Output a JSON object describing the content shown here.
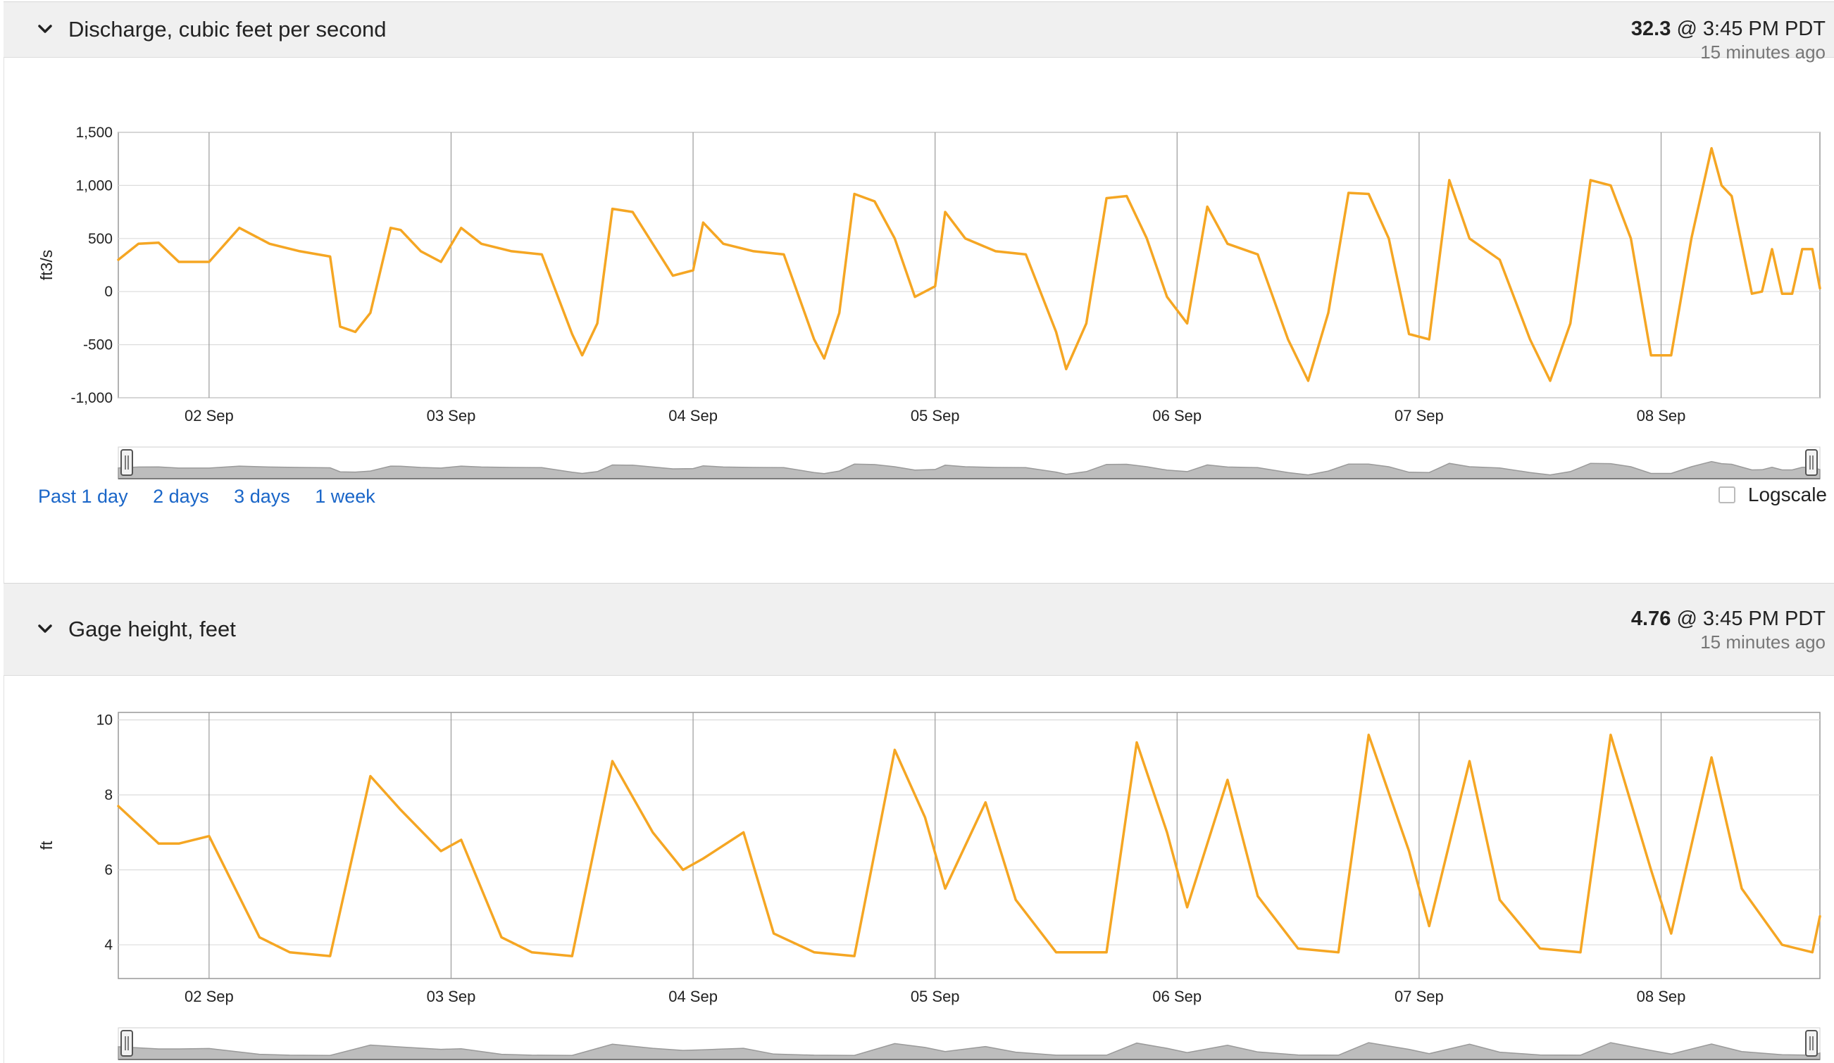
{
  "panels": [
    {
      "title": "Discharge, cubic feet per second",
      "current_value": "32.3",
      "current_time": "@ 3:45 PM PDT",
      "current_ago": "15 minutes ago"
    },
    {
      "title": "Gage height, feet",
      "current_value": "4.76",
      "current_time": "@ 3:45 PM PDT",
      "current_ago": "15 minutes ago"
    }
  ],
  "controls": {
    "range_links": [
      "Past 1 day",
      "2 days",
      "3 days",
      "1 week"
    ],
    "logscale_label": "Logscale"
  },
  "colors": {
    "series": "#f5a623",
    "header_bg": "#f0f0f0",
    "link": "#1a66c8",
    "navigator_fill": "#bdbdbd"
  },
  "chart_data": [
    {
      "type": "line",
      "ylabel": "ft3/s",
      "xlim": [
        "2024-09-01T15:00",
        "2024-09-08T15:45"
      ],
      "ylim": [
        -1000,
        1500
      ],
      "yticks": [
        -1000,
        -500,
        0,
        500,
        1000,
        1500
      ],
      "ytick_labels": [
        "-1,000",
        "-500",
        "0",
        "500",
        "1,000",
        "1,500"
      ],
      "xticks": [
        "2024-09-02T00:00",
        "2024-09-03T00:00",
        "2024-09-04T00:00",
        "2024-09-05T00:00",
        "2024-09-06T00:00",
        "2024-09-07T00:00",
        "2024-09-08T00:00"
      ],
      "xtick_labels": [
        "02 Sep",
        "03 Sep",
        "04 Sep",
        "05 Sep",
        "06 Sep",
        "07 Sep",
        "08 Sep"
      ],
      "grid": true,
      "series": [
        {
          "x": [
            "2024-09-01T15:00",
            "2024-09-01T17:00",
            "2024-09-01T19:00",
            "2024-09-01T21:00",
            "2024-09-02T00:00",
            "2024-09-02T03:00",
            "2024-09-02T06:00",
            "2024-09-02T09:00",
            "2024-09-02T12:00",
            "2024-09-02T13:00",
            "2024-09-02T14:30",
            "2024-09-02T16:00",
            "2024-09-02T18:00",
            "2024-09-02T19:00",
            "2024-09-02T21:00",
            "2024-09-02T23:00",
            "2024-09-03T01:00",
            "2024-09-03T03:00",
            "2024-09-03T06:00",
            "2024-09-03T09:00",
            "2024-09-03T12:00",
            "2024-09-03T13:00",
            "2024-09-03T14:30",
            "2024-09-03T16:00",
            "2024-09-03T18:00",
            "2024-09-03T20:00",
            "2024-09-03T22:00",
            "2024-09-04T00:00",
            "2024-09-04T01:00",
            "2024-09-04T03:00",
            "2024-09-04T06:00",
            "2024-09-04T09:00",
            "2024-09-04T12:00",
            "2024-09-04T13:00",
            "2024-09-04T14:30",
            "2024-09-04T16:00",
            "2024-09-04T18:00",
            "2024-09-04T20:00",
            "2024-09-04T22:00",
            "2024-09-05T00:00",
            "2024-09-05T01:00",
            "2024-09-05T03:00",
            "2024-09-05T06:00",
            "2024-09-05T09:00",
            "2024-09-05T12:00",
            "2024-09-05T13:00",
            "2024-09-05T15:00",
            "2024-09-05T17:00",
            "2024-09-05T19:00",
            "2024-09-05T21:00",
            "2024-09-05T23:00",
            "2024-09-06T01:00",
            "2024-09-06T03:00",
            "2024-09-06T05:00",
            "2024-09-06T08:00",
            "2024-09-06T11:00",
            "2024-09-06T13:00",
            "2024-09-06T15:00",
            "2024-09-06T17:00",
            "2024-09-06T19:00",
            "2024-09-06T21:00",
            "2024-09-06T23:00",
            "2024-09-07T01:00",
            "2024-09-07T03:00",
            "2024-09-07T05:00",
            "2024-09-07T08:00",
            "2024-09-07T11:00",
            "2024-09-07T13:00",
            "2024-09-07T15:00",
            "2024-09-07T17:00",
            "2024-09-07T19:00",
            "2024-09-07T21:00",
            "2024-09-07T23:00",
            "2024-09-08T01:00",
            "2024-09-08T03:00",
            "2024-09-08T05:00",
            "2024-09-08T06:00",
            "2024-09-08T07:00",
            "2024-09-08T09:00",
            "2024-09-08T10:00",
            "2024-09-08T11:00",
            "2024-09-08T12:00",
            "2024-09-08T13:00",
            "2024-09-08T14:00",
            "2024-09-08T15:00",
            "2024-09-08T15:45"
          ],
          "values": [
            300,
            450,
            460,
            280,
            280,
            600,
            450,
            380,
            330,
            -330,
            -380,
            -200,
            600,
            580,
            380,
            280,
            600,
            450,
            380,
            350,
            -400,
            -600,
            -300,
            780,
            750,
            450,
            150,
            200,
            650,
            450,
            380,
            350,
            -450,
            -630,
            -200,
            920,
            850,
            500,
            -50,
            50,
            750,
            500,
            380,
            350,
            -380,
            -730,
            -300,
            880,
            900,
            500,
            -50,
            -300,
            800,
            450,
            350,
            -450,
            -840,
            -200,
            930,
            920,
            500,
            -400,
            -450,
            1050,
            500,
            300,
            -450,
            -840,
            -300,
            1050,
            1000,
            500,
            -600,
            -600,
            500,
            1350,
            1000,
            900,
            -20,
            0,
            400,
            -20,
            -20,
            400,
            400,
            32
          ]
        }
      ]
    },
    {
      "type": "line",
      "ylabel": "ft",
      "xlim": [
        "2024-09-01T15:00",
        "2024-09-08T15:45"
      ],
      "ylim": [
        3.1,
        10.2
      ],
      "yticks": [
        4,
        6,
        8,
        10
      ],
      "ytick_labels": [
        "4",
        "6",
        "8",
        "10"
      ],
      "xticks": [
        "2024-09-02T00:00",
        "2024-09-03T00:00",
        "2024-09-04T00:00",
        "2024-09-05T00:00",
        "2024-09-06T00:00",
        "2024-09-07T00:00",
        "2024-09-08T00:00"
      ],
      "xtick_labels": [
        "02 Sep",
        "03 Sep",
        "04 Sep",
        "05 Sep",
        "06 Sep",
        "07 Sep",
        "08 Sep"
      ],
      "grid": true,
      "series": [
        {
          "x": [
            "2024-09-01T15:00",
            "2024-09-01T19:00",
            "2024-09-01T21:00",
            "2024-09-02T00:00",
            "2024-09-02T05:00",
            "2024-09-02T08:00",
            "2024-09-02T12:00",
            "2024-09-02T16:00",
            "2024-09-02T19:00",
            "2024-09-02T23:00",
            "2024-09-03T01:00",
            "2024-09-03T05:00",
            "2024-09-03T08:00",
            "2024-09-03T12:00",
            "2024-09-03T16:00",
            "2024-09-03T20:00",
            "2024-09-03T23:00",
            "2024-09-04T01:00",
            "2024-09-04T05:00",
            "2024-09-04T08:00",
            "2024-09-04T12:00",
            "2024-09-04T16:00",
            "2024-09-04T20:00",
            "2024-09-04T23:00",
            "2024-09-05T01:00",
            "2024-09-05T05:00",
            "2024-09-05T08:00",
            "2024-09-05T12:00",
            "2024-09-05T17:00",
            "2024-09-05T20:00",
            "2024-09-05T23:00",
            "2024-09-06T01:00",
            "2024-09-06T05:00",
            "2024-09-06T08:00",
            "2024-09-06T12:00",
            "2024-09-06T16:00",
            "2024-09-06T19:00",
            "2024-09-06T23:00",
            "2024-09-07T01:00",
            "2024-09-07T05:00",
            "2024-09-07T08:00",
            "2024-09-07T12:00",
            "2024-09-07T16:00",
            "2024-09-07T19:00",
            "2024-09-07T23:00",
            "2024-09-08T01:00",
            "2024-09-08T05:00",
            "2024-09-08T08:00",
            "2024-09-08T12:00",
            "2024-09-08T15:00",
            "2024-09-08T15:45"
          ],
          "values": [
            7.7,
            6.7,
            6.7,
            6.9,
            4.2,
            3.8,
            3.7,
            8.5,
            7.6,
            6.5,
            6.8,
            4.2,
            3.8,
            3.7,
            8.9,
            7.0,
            6.0,
            6.3,
            7.0,
            4.3,
            3.8,
            3.7,
            9.2,
            7.4,
            5.5,
            7.8,
            5.2,
            3.8,
            3.8,
            9.4,
            7.0,
            5.0,
            8.4,
            5.3,
            3.9,
            3.8,
            9.6,
            6.5,
            4.5,
            8.9,
            5.2,
            3.9,
            3.8,
            9.6,
            6.0,
            4.3,
            9.0,
            5.5,
            4.0,
            3.8,
            4.76
          ]
        }
      ]
    }
  ]
}
